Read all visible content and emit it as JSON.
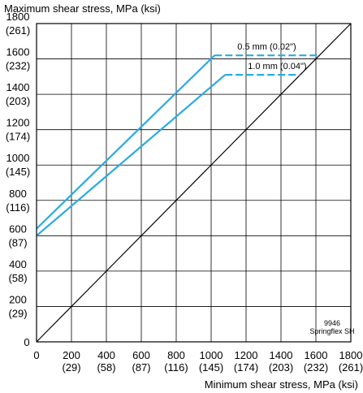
{
  "chart_data": {
    "type": "line",
    "ylabel": "Maximum shear stress, MPa (ksi)",
    "xlabel": "Minimum shear stress, MPa (ksi)",
    "xlim": [
      0,
      1800
    ],
    "ylim": [
      0,
      1800
    ],
    "grid": true,
    "x_ticks": [
      {
        "value": 0,
        "label": "0",
        "sub": ""
      },
      {
        "value": 200,
        "label": "200",
        "sub": "(29)"
      },
      {
        "value": 400,
        "label": "400",
        "sub": "(58)"
      },
      {
        "value": 600,
        "label": "600",
        "sub": "(87)"
      },
      {
        "value": 800,
        "label": "800",
        "sub": "(116)"
      },
      {
        "value": 1000,
        "label": "1000",
        "sub": "(145)"
      },
      {
        "value": 1200,
        "label": "1200",
        "sub": "(174)"
      },
      {
        "value": 1400,
        "label": "1400",
        "sub": "(203)"
      },
      {
        "value": 1600,
        "label": "1600",
        "sub": "(232)"
      },
      {
        "value": 1800,
        "label": "1800",
        "sub": "(261)"
      }
    ],
    "y_ticks": [
      {
        "value": 0,
        "label": "0",
        "sub": ""
      },
      {
        "value": 200,
        "label": "200",
        "sub": "(29)"
      },
      {
        "value": 400,
        "label": "400",
        "sub": "(58)"
      },
      {
        "value": 600,
        "label": "600",
        "sub": "(87)"
      },
      {
        "value": 800,
        "label": "800",
        "sub": "(116)"
      },
      {
        "value": 1000,
        "label": "1000",
        "sub": "(145)"
      },
      {
        "value": 1200,
        "label": "1200",
        "sub": "(174)"
      },
      {
        "value": 1400,
        "label": "1400",
        "sub": "(203)"
      },
      {
        "value": 1600,
        "label": "1600",
        "sub": "(232)"
      },
      {
        "value": 1800,
        "label": "1800",
        "sub": "(261)"
      }
    ],
    "series": [
      {
        "name": "0.5 mm (0.02\")",
        "color": "#29abe2",
        "solid": [
          [
            0,
            640
          ],
          [
            1020,
            1620
          ]
        ],
        "dashed": [
          [
            1020,
            1620
          ],
          [
            1620,
            1620
          ]
        ]
      },
      {
        "name": "1.0 mm (0.04\")",
        "color": "#29abe2",
        "solid": [
          [
            0,
            600
          ],
          [
            1080,
            1510
          ]
        ],
        "dashed": [
          [
            1080,
            1510
          ],
          [
            1510,
            1510
          ]
        ]
      }
    ],
    "reference_line": {
      "color": "#000000",
      "points": [
        [
          0,
          0
        ],
        [
          1800,
          1800
        ]
      ]
    },
    "note_lines": [
      "9946",
      "Springflex SH"
    ]
  }
}
